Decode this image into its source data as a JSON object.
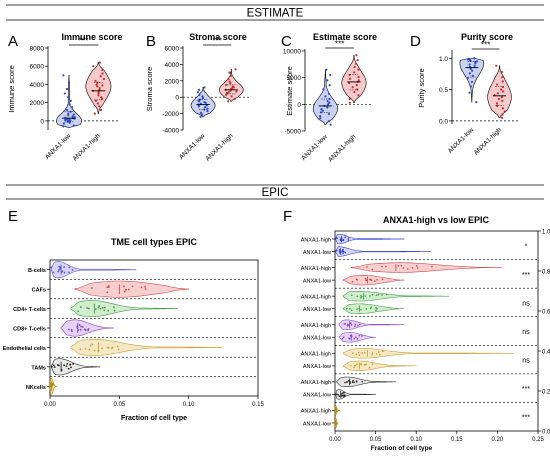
{
  "figure": {
    "banners": {
      "top": "ESTIMATE",
      "middle": "EPIC"
    },
    "colors": {
      "low_fill": "#c9d2f2",
      "low_point": "#2f4ad0",
      "high_fill": "#f6caca",
      "high_point": "#c43030",
      "grid": "#000000"
    }
  },
  "chart_data": [
    {
      "id": "A",
      "type": "violin",
      "title": "Immune score",
      "ylabel": "Immune score",
      "categories": [
        "ANXA1-low",
        "ANXA1-high"
      ],
      "ylim": [
        -1000,
        8000
      ],
      "yticks": [
        0,
        2000,
        4000,
        6000,
        8000
      ],
      "zero_line": true,
      "significance": "***",
      "groups": [
        {
          "name": "ANXA1-low",
          "min": -700,
          "q1": -100,
          "median": 300,
          "q3": 1000,
          "max": 5000,
          "peak": 0,
          "points": [
            -600,
            -500,
            -300,
            -200,
            -100,
            0,
            50,
            100,
            150,
            200,
            250,
            300,
            350,
            400,
            500,
            600,
            700,
            800,
            1000,
            1200,
            1500,
            1800,
            2200,
            2600,
            3000,
            3500,
            4200,
            5000
          ]
        },
        {
          "name": "ANXA1-high",
          "min": 800,
          "q1": 2300,
          "median": 3300,
          "q3": 4200,
          "max": 6400,
          "peak": 3800,
          "points": [
            800,
            1200,
            1600,
            1900,
            2200,
            2400,
            2600,
            2800,
            3000,
            3200,
            3300,
            3400,
            3600,
            3800,
            3900,
            4000,
            4200,
            4400,
            4600,
            4900,
            5200,
            5600,
            6000,
            6400
          ]
        }
      ]
    },
    {
      "id": "B",
      "type": "violin",
      "title": "Stroma score",
      "ylabel": "Stroma score",
      "categories": [
        "ANXA1-low",
        "ANXA1-high"
      ],
      "ylim": [
        -4000,
        6000
      ],
      "yticks": [
        -4000,
        -2000,
        0,
        2000,
        4000,
        6000
      ],
      "zero_line": true,
      "significance": "***",
      "groups": [
        {
          "name": "ANXA1-low",
          "min": -2400,
          "q1": -1500,
          "median": -900,
          "q3": -300,
          "max": 1200,
          "peak": -1000,
          "points": [
            -2400,
            -2100,
            -1900,
            -1700,
            -1500,
            -1400,
            -1200,
            -1100,
            -1000,
            -900,
            -800,
            -700,
            -600,
            -500,
            -400,
            -300,
            -100,
            100,
            300,
            600,
            900,
            1200
          ]
        },
        {
          "name": "ANXA1-high",
          "min": -500,
          "q1": 400,
          "median": 900,
          "q3": 1500,
          "max": 3400,
          "peak": 900,
          "points": [
            -500,
            -200,
            100,
            300,
            500,
            600,
            700,
            800,
            900,
            1000,
            1100,
            1200,
            1300,
            1500,
            1700,
            1900,
            2200,
            2600,
            3000,
            3400
          ]
        }
      ]
    },
    {
      "id": "C",
      "type": "violin",
      "title": "Estimate score",
      "ylabel": "Estimate score",
      "categories": [
        "ANXA1-low",
        "ANXA1-high"
      ],
      "ylim": [
        -5000,
        10000
      ],
      "yticks": [
        -5000,
        0,
        5000,
        10000
      ],
      "zero_line": true,
      "significance": "***",
      "groups": [
        {
          "name": "ANXA1-low",
          "min": -3800,
          "q1": -1500,
          "median": -300,
          "q3": 1000,
          "max": 6500,
          "peak": -800,
          "points": [
            -3800,
            -3200,
            -2600,
            -2200,
            -1800,
            -1500,
            -1200,
            -900,
            -600,
            -300,
            0,
            300,
            600,
            1000,
            1500,
            2000,
            2800,
            3600,
            4500,
            5500,
            6500
          ]
        },
        {
          "name": "ANXA1-high",
          "min": 300,
          "q1": 2700,
          "median": 4200,
          "q3": 5600,
          "max": 9200,
          "peak": 4000,
          "points": [
            300,
            1000,
            1700,
            2300,
            2800,
            3200,
            3600,
            4000,
            4200,
            4500,
            4800,
            5100,
            5500,
            6000,
            6500,
            7000,
            7600,
            8300,
            9200
          ]
        }
      ]
    },
    {
      "id": "D",
      "type": "violin",
      "title": "Purity score",
      "ylabel": "Purity score",
      "categories": [
        "ANXA1-low",
        "ANXA1-high"
      ],
      "ylim": [
        -0.05,
        1.1
      ],
      "yticks": [
        0.0,
        0.5,
        1.0
      ],
      "zero_line": true,
      "significance": "***",
      "groups": [
        {
          "name": "ANXA1-low",
          "min": 0.3,
          "q1": 0.7,
          "median": 0.85,
          "q3": 0.95,
          "max": 1.0,
          "peak": 0.92,
          "points": [
            0.3,
            0.45,
            0.55,
            0.62,
            0.68,
            0.72,
            0.76,
            0.8,
            0.83,
            0.86,
            0.88,
            0.9,
            0.92,
            0.94,
            0.95,
            0.96,
            0.97,
            0.98,
            0.99,
            1.0
          ]
        },
        {
          "name": "ANXA1-high",
          "min": 0.05,
          "q1": 0.25,
          "median": 0.4,
          "q3": 0.55,
          "max": 0.88,
          "peak": 0.38,
          "points": [
            0.05,
            0.1,
            0.15,
            0.2,
            0.24,
            0.28,
            0.32,
            0.35,
            0.38,
            0.41,
            0.44,
            0.47,
            0.5,
            0.54,
            0.58,
            0.63,
            0.7,
            0.78,
            0.88
          ]
        }
      ]
    },
    {
      "id": "E",
      "type": "violin-horizontal",
      "title": "TME cell types EPIC",
      "xlabel": "Fraction of cell type",
      "xlim": [
        0,
        0.15
      ],
      "xticks": [
        0.0,
        0.05,
        0.1,
        0.15
      ],
      "rows": [
        {
          "label": "B-cells",
          "color": "#5b58c9",
          "fill": "#d6d5f5",
          "min": 0.001,
          "q1": 0.004,
          "median": 0.008,
          "q3": 0.013,
          "max": 0.062,
          "peak": 0.006,
          "spread": 0.013
        },
        {
          "label": "CAFs",
          "color": "#d24a4a",
          "fill": "#f6d0cf",
          "min": 0.018,
          "q1": 0.035,
          "median": 0.05,
          "q3": 0.07,
          "max": 0.1,
          "peak": 0.05,
          "spread": 0.03
        },
        {
          "label": "CD4+ T-cells",
          "color": "#3f9a3f",
          "fill": "#d2ecd0",
          "min": 0.015,
          "q1": 0.025,
          "median": 0.032,
          "q3": 0.045,
          "max": 0.092,
          "peak": 0.03,
          "spread": 0.02
        },
        {
          "label": "CD8+ T-cells",
          "color": "#8b3fc0",
          "fill": "#e5d3f3",
          "min": 0.008,
          "q1": 0.015,
          "median": 0.02,
          "q3": 0.028,
          "max": 0.046,
          "peak": 0.018,
          "spread": 0.012
        },
        {
          "label": "Endothelial cells",
          "color": "#c9a032",
          "fill": "#f4e7c4",
          "min": 0.015,
          "q1": 0.025,
          "median": 0.035,
          "q3": 0.05,
          "max": 0.124,
          "peak": 0.032,
          "spread": 0.022
        },
        {
          "label": "TAMs",
          "color": "#222222",
          "fill": "#e8e8e8",
          "min": 0.001,
          "q1": 0.004,
          "median": 0.008,
          "q3": 0.015,
          "max": 0.036,
          "peak": 0.007,
          "spread": 0.012
        },
        {
          "label": "NKcells",
          "color": "#b8860b",
          "fill": "#f1dfb0",
          "min": 0.0,
          "q1": 0.0005,
          "median": 0.001,
          "q3": 0.002,
          "max": 0.005,
          "peak": 0.001,
          "spread": 0.003
        }
      ]
    },
    {
      "id": "F",
      "type": "violin-horizontal",
      "title": "ANXA1-high vs low EPIC",
      "xlabel": "Fraction of cell type",
      "xlim": [
        0,
        0.25
      ],
      "xticks": [
        0.0,
        0.05,
        0.1,
        0.15,
        0.2,
        0.25
      ],
      "right_axis": {
        "ylim": [
          0.0,
          1.0
        ],
        "ticks": [
          0.0,
          0.2,
          0.4,
          0.6,
          0.8,
          1.0
        ]
      },
      "groups": [
        {
          "significance": "*",
          "color": "#2d3bd6",
          "fill": "#d4d8f6",
          "rows": [
            {
              "label": "ANXA1-high",
              "min": 0.001,
              "q1": 0.004,
              "median": 0.008,
              "q3": 0.014,
              "max": 0.085,
              "peak": 0.005,
              "spread": 0.015
            },
            {
              "label": "ANXA1-low",
              "min": 0.001,
              "q1": 0.004,
              "median": 0.007,
              "q3": 0.012,
              "max": 0.118,
              "peak": 0.004,
              "spread": 0.012
            }
          ]
        },
        {
          "significance": "***",
          "color": "#c94040",
          "fill": "#f6d0cf",
          "rows": [
            {
              "label": "ANXA1-high",
              "min": 0.02,
              "q1": 0.05,
              "median": 0.075,
              "q3": 0.11,
              "max": 0.205,
              "peak": 0.08,
              "spread": 0.045
            },
            {
              "label": "ANXA1-low",
              "min": 0.01,
              "q1": 0.025,
              "median": 0.04,
              "q3": 0.055,
              "max": 0.085,
              "peak": 0.035,
              "spread": 0.03
            }
          ]
        },
        {
          "significance": "ns",
          "color": "#3a9a3a",
          "fill": "#d2ecd0",
          "rows": [
            {
              "label": "ANXA1-high",
              "min": 0.01,
              "q1": 0.025,
              "median": 0.035,
              "q3": 0.06,
              "max": 0.14,
              "peak": 0.03,
              "spread": 0.03
            },
            {
              "label": "ANXA1-low",
              "min": 0.01,
              "q1": 0.02,
              "median": 0.03,
              "q3": 0.05,
              "max": 0.085,
              "peak": 0.03,
              "spread": 0.025
            }
          ]
        },
        {
          "significance": "ns",
          "color": "#8a3fc0",
          "fill": "#e5d3f3",
          "rows": [
            {
              "label": "ANXA1-high",
              "min": 0.005,
              "q1": 0.012,
              "median": 0.018,
              "q3": 0.028,
              "max": 0.085,
              "peak": 0.015,
              "spread": 0.015
            },
            {
              "label": "ANXA1-low",
              "min": 0.005,
              "q1": 0.012,
              "median": 0.02,
              "q3": 0.03,
              "max": 0.05,
              "peak": 0.018,
              "spread": 0.015
            }
          ]
        },
        {
          "significance": "ns",
          "color": "#c59b2c",
          "fill": "#f4e7c4",
          "rows": [
            {
              "label": "ANXA1-high",
              "min": 0.01,
              "q1": 0.025,
              "median": 0.04,
              "q3": 0.06,
              "max": 0.22,
              "peak": 0.035,
              "spread": 0.035
            },
            {
              "label": "ANXA1-low",
              "min": 0.01,
              "q1": 0.02,
              "median": 0.03,
              "q3": 0.045,
              "max": 0.1,
              "peak": 0.03,
              "spread": 0.025
            }
          ]
        },
        {
          "significance": "***",
          "color": "#1e1e1e",
          "fill": "#e6e6e6",
          "rows": [
            {
              "label": "ANXA1-high",
              "min": 0.002,
              "q1": 0.01,
              "median": 0.018,
              "q3": 0.03,
              "max": 0.075,
              "peak": 0.015,
              "spread": 0.02
            },
            {
              "label": "ANXA1-low",
              "min": 0.001,
              "q1": 0.004,
              "median": 0.007,
              "q3": 0.012,
              "max": 0.05,
              "peak": 0.005,
              "spread": 0.01
            }
          ]
        },
        {
          "significance": "***",
          "color": "#b8860b",
          "fill": "#f1dfb0",
          "rows": [
            {
              "label": "ANXA1-high",
              "min": 0.0,
              "q1": 0.0005,
              "median": 0.001,
              "q3": 0.002,
              "max": 0.006,
              "peak": 0.001,
              "spread": 0.003
            },
            {
              "label": "ANXA1-low",
              "min": 0.0,
              "q1": 0.0005,
              "median": 0.001,
              "q3": 0.002,
              "max": 0.004,
              "peak": 0.001,
              "spread": 0.003
            }
          ]
        }
      ]
    }
  ]
}
